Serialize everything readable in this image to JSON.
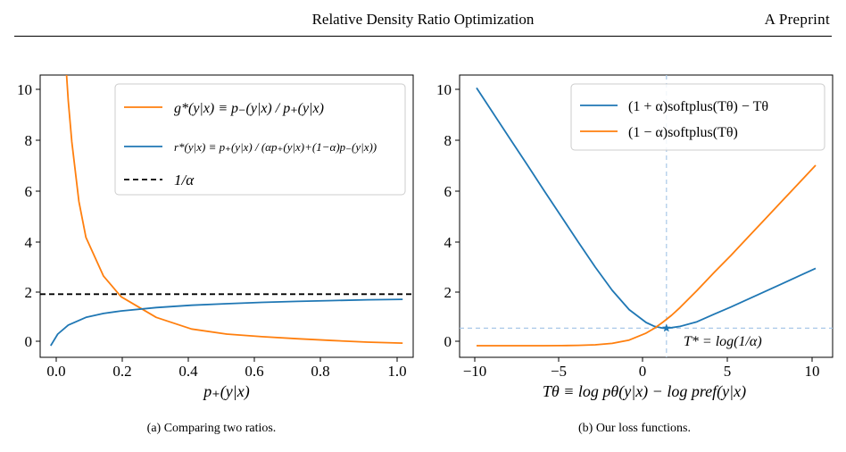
{
  "header": {
    "title": "Relative Density Ratio Optimization",
    "tag": "A Preprint"
  },
  "figures": [
    {
      "caption": "(a) Comparing two ratios.",
      "xlabel": "p₊(y|x)",
      "ticks_x": [
        "0.0",
        "0.2",
        "0.4",
        "0.6",
        "0.8",
        "1.0"
      ],
      "ticks_y": [
        "0",
        "2",
        "4",
        "6",
        "8",
        "10"
      ],
      "legend": [
        {
          "label": "g*(y|x) ≡ p₋(y|x) / p₊(y|x)",
          "color": "#ff7f0e",
          "style": "solid"
        },
        {
          "label": "r*(y|x) ≡ p₊(y|x) / (αp₊(y|x)+(1−α)p₋(y|x))",
          "color": "#1f77b4",
          "style": "solid"
        },
        {
          "label": "1/α",
          "color": "#000000",
          "style": "dashed"
        }
      ]
    },
    {
      "caption": "(b) Our loss functions.",
      "xlabel": "Tθ ≡ log pθ(y|x) − log pref(y|x)",
      "ticks_x": [
        "−10",
        "−5",
        "0",
        "5",
        "10"
      ],
      "ticks_y": [
        "0",
        "2",
        "4",
        "6",
        "8",
        "10"
      ],
      "legend": [
        {
          "label": "(1 + α)softplus(Tθ) − Tθ",
          "color": "#1f77b4",
          "style": "solid"
        },
        {
          "label": "(1 − α)softplus(Tθ)",
          "color": "#ff7f0e",
          "style": "solid"
        }
      ],
      "annotation": "T* = log(1/α)"
    }
  ],
  "chart_data": [
    {
      "type": "line",
      "xlabel": "p₊(y|x)",
      "ylabel": "",
      "xlim": [
        -0.03,
        1.03
      ],
      "ylim": [
        -0.45,
        10.5
      ],
      "alpha": 0.5,
      "series": [
        {
          "name": "g*(y|x)",
          "color": "#ff7f0e",
          "x": [
            0.045,
            0.05,
            0.06,
            0.08,
            0.1,
            0.15,
            0.2,
            0.3,
            0.4,
            0.5,
            0.6,
            0.7,
            0.8,
            0.9,
            1.0
          ],
          "y": [
            10.5,
            9.5,
            7.9,
            5.6,
            4.2,
            2.7,
            1.9,
            1.1,
            0.65,
            0.45,
            0.35,
            0.27,
            0.2,
            0.14,
            0.1
          ]
        },
        {
          "name": "r*(y|x)",
          "color": "#1f77b4",
          "x": [
            0.0,
            0.02,
            0.05,
            0.1,
            0.15,
            0.2,
            0.3,
            0.4,
            0.5,
            0.6,
            0.7,
            0.8,
            0.9,
            1.0
          ],
          "y": [
            0.0,
            0.45,
            0.8,
            1.1,
            1.25,
            1.35,
            1.48,
            1.57,
            1.63,
            1.68,
            1.72,
            1.75,
            1.78,
            1.8
          ]
        },
        {
          "name": "1/α",
          "color": "#000000",
          "dashed": true,
          "x": [
            -0.03,
            1.03
          ],
          "y": [
            2.0,
            2.0
          ]
        }
      ]
    },
    {
      "type": "line",
      "xlabel": "Tθ ≡ log pθ(y|x) − log pref(y|x)",
      "ylabel": "",
      "xlim": [
        -11,
        11
      ],
      "ylim": [
        -0.45,
        10.5
      ],
      "alpha": 0.3,
      "series": [
        {
          "name": "(1 + α)softplus(Tθ) − Tθ",
          "color": "#1f77b4",
          "x": [
            -10,
            -9,
            -8,
            -7,
            -6,
            -5,
            -4,
            -3,
            -2,
            -1,
            0,
            0.5,
            1,
            1.2,
            1.5,
            2,
            3,
            4,
            5,
            6,
            7,
            8,
            9,
            10
          ],
          "y": [
            10.0,
            9.0,
            8.0,
            7.01,
            6.0,
            5.01,
            4.02,
            3.05,
            2.15,
            1.4,
            0.9,
            0.75,
            0.68,
            0.68,
            0.7,
            0.75,
            0.93,
            1.22,
            1.5,
            1.8,
            2.1,
            2.4,
            2.7,
            3.0
          ]
        },
        {
          "name": "(1 − α)softplus(Tθ)",
          "color": "#ff7f0e",
          "x": [
            -10,
            -8,
            -6,
            -5,
            -4,
            -3,
            -2,
            -1,
            0,
            0.5,
            1,
            1.5,
            2,
            3,
            4,
            5,
            6,
            7,
            8,
            9,
            10
          ],
          "y": [
            0.0,
            0.0,
            0.0,
            0.005,
            0.013,
            0.034,
            0.09,
            0.22,
            0.49,
            0.68,
            0.92,
            1.18,
            1.48,
            2.14,
            2.83,
            3.5,
            4.2,
            4.9,
            5.6,
            6.3,
            7.0
          ]
        }
      ],
      "reference_lines": {
        "x": 1.2,
        "y": 0.68,
        "color": "#a9c8e8"
      },
      "marker": {
        "x": 1.2,
        "y": 0.68,
        "shape": "star",
        "color": "#1f77b4"
      }
    }
  ],
  "bottom_fragment": "(a)                                                  (b)"
}
